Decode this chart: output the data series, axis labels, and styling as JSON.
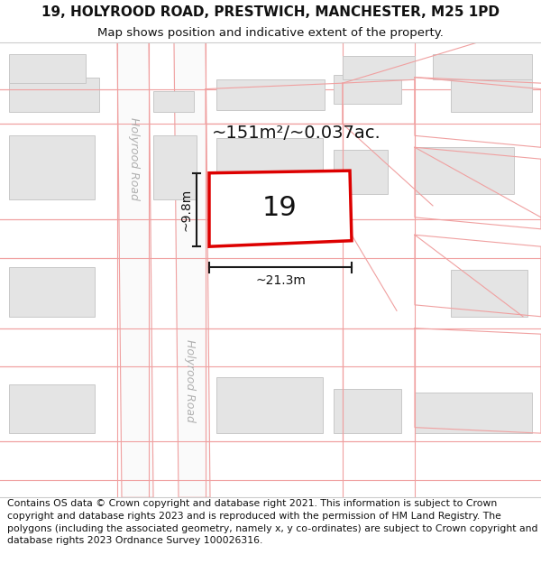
{
  "title": "19, HOLYROOD ROAD, PRESTWICH, MANCHESTER, M25 1PD",
  "subtitle": "Map shows position and indicative extent of the property.",
  "footer": "Contains OS data © Crown copyright and database right 2021. This information is subject to Crown copyright and database rights 2023 and is reproduced with the permission of\nHM Land Registry. The polygons (including the associated geometry, namely x, y\nco-ordinates) are subject to Crown copyright and database rights 2023 Ordnance Survey\n100026316.",
  "area_label": "~151m²/~0.037ac.",
  "width_label": "~21.3m",
  "height_label": "~9.8m",
  "number_label": "19",
  "map_bg": "#ffffff",
  "road_fill": "#f7f7f7",
  "road_edge": "#e8b0b0",
  "bld_fill": "#e4e4e4",
  "bld_edge": "#c8c8c8",
  "parcel_edge": "#f0a0a0",
  "target_edge": "#dd0000",
  "target_fill": "#ffffff",
  "dim_color": "#1a1a1a",
  "road_label_color": "#b0b0b0",
  "title_fs": 11,
  "subtitle_fs": 9.5,
  "footer_fs": 7.8,
  "area_fs": 14,
  "num_fs": 22,
  "dim_fs": 10,
  "road_fs": 9
}
